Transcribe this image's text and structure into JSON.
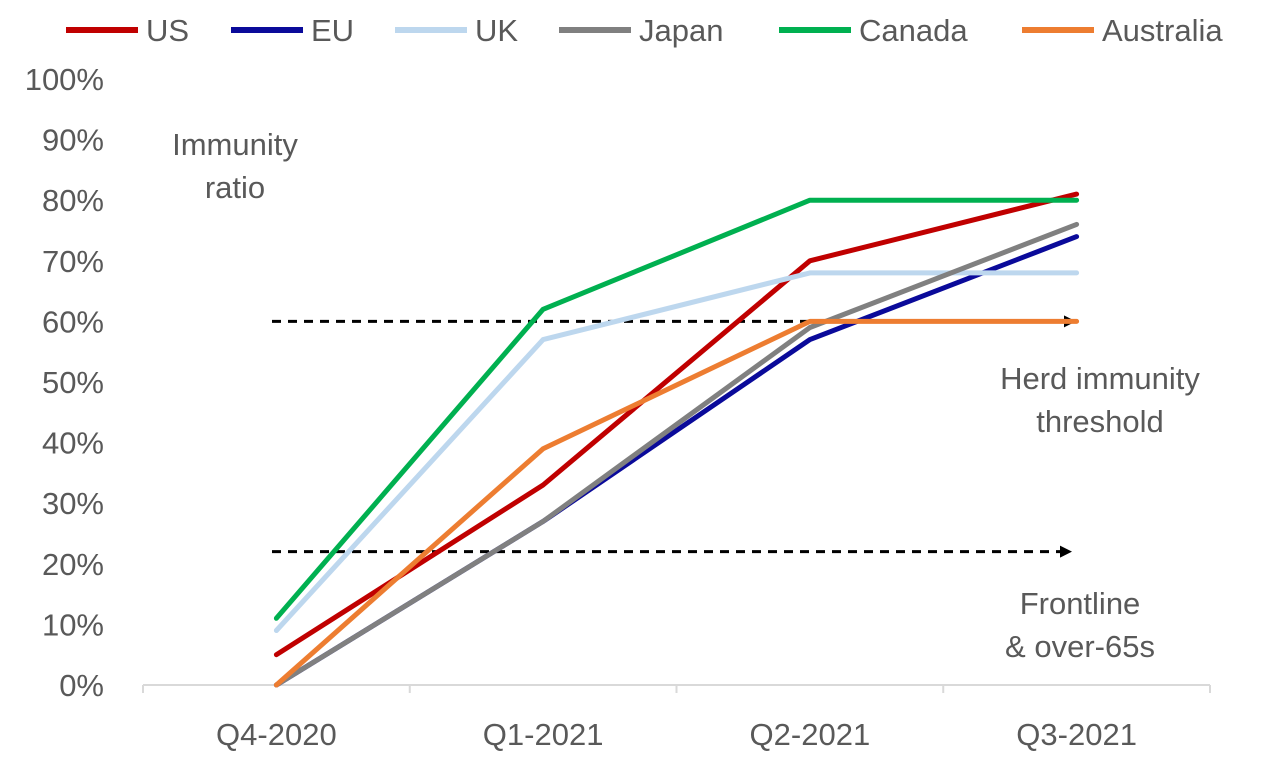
{
  "chart_data": {
    "type": "line",
    "categories": [
      "Q4-2020",
      "Q1-2021",
      "Q2-2021",
      "Q3-2021"
    ],
    "ylim": [
      0,
      100
    ],
    "yticks": [
      "0%",
      "10%",
      "20%",
      "30%",
      "40%",
      "50%",
      "60%",
      "70%",
      "80%",
      "90%",
      "100%"
    ],
    "ylabel_lines": [
      "Immunity",
      "ratio"
    ],
    "legend_position": "top",
    "grid": false,
    "series": [
      {
        "name": "US",
        "color": "#C00000",
        "values": [
          5,
          33,
          70,
          81
        ]
      },
      {
        "name": "EU",
        "color": "#0A0A9A",
        "values": [
          0,
          27,
          57,
          74
        ]
      },
      {
        "name": "UK",
        "color": "#BDD7EE",
        "values": [
          9,
          57,
          68,
          68
        ]
      },
      {
        "name": "Japan",
        "color": "#808080",
        "values": [
          0,
          27,
          59,
          76
        ]
      },
      {
        "name": "Canada",
        "color": "#00B050",
        "values": [
          11,
          62,
          80,
          80
        ]
      },
      {
        "name": "Australia",
        "color": "#ED7D31",
        "values": [
          0,
          39,
          60,
          60
        ]
      }
    ],
    "annotations": [
      {
        "id": "herd",
        "y": 60,
        "lines": [
          "Herd immunity",
          "threshold"
        ]
      },
      {
        "id": "frontline",
        "y": 22,
        "lines": [
          "Frontline",
          "& over-65s"
        ]
      }
    ]
  }
}
